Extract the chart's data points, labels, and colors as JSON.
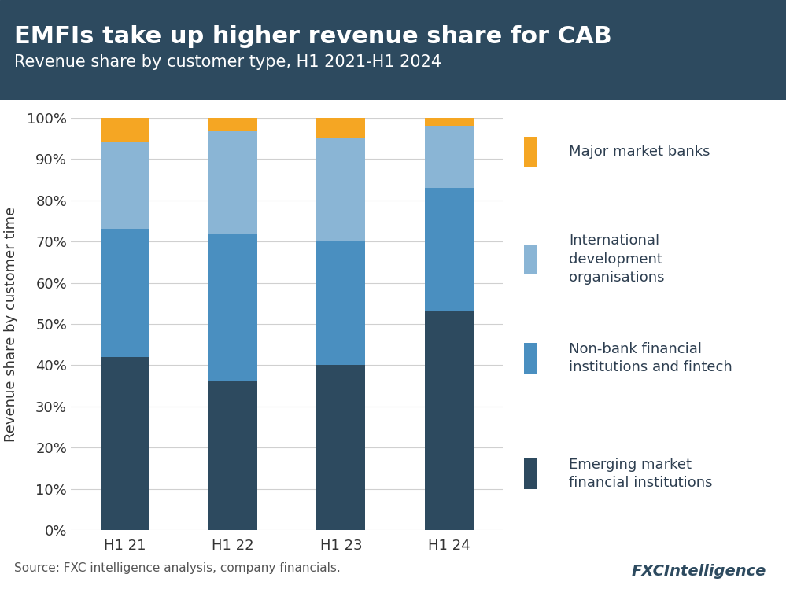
{
  "title_main": "EMFIs take up higher revenue share for CAB",
  "title_sub": "Revenue share by customer type, H1 2021-H1 2024",
  "categories": [
    "H1 21",
    "H1 22",
    "H1 23",
    "H1 24"
  ],
  "series_order": [
    "Emerging market financial institutions",
    "Non-bank financial institutions and fintech",
    "International development organisations",
    "Major market banks"
  ],
  "series": {
    "Emerging market financial institutions": [
      42,
      36,
      40,
      53
    ],
    "Non-bank financial institutions and fintech": [
      31,
      36,
      30,
      30
    ],
    "International development organisations": [
      21,
      25,
      25,
      15
    ],
    "Major market banks": [
      6,
      3,
      5,
      2
    ]
  },
  "colors": {
    "Emerging market financial institutions": "#2d4a5f",
    "Non-bank financial institutions and fintech": "#4a8fc0",
    "International development organisations": "#8ab5d5",
    "Major market banks": "#f5a623"
  },
  "legend_order": [
    "Major market banks",
    "International development organisations",
    "Non-bank financial institutions and fintech",
    "Emerging market financial institutions"
  ],
  "legend_display": {
    "Major market banks": "Major market banks",
    "International development organisations": "International\ndevelopment\norganisations",
    "Non-bank financial institutions and fintech": "Non-bank financial\ninstitutions and fintech",
    "Emerging market financial institutions": "Emerging market\nfinancial institutions"
  },
  "ylabel": "Revenue share by customer time",
  "source": "Source: FXC intelligence analysis, company financials.",
  "header_bg": "#2d4a5f",
  "header_text_color": "#ffffff",
  "background_color": "#ffffff",
  "bar_width": 0.45,
  "ylim": [
    0,
    100
  ],
  "title_fontsize": 22,
  "subtitle_fontsize": 15,
  "axis_fontsize": 13,
  "legend_fontsize": 13,
  "source_fontsize": 11
}
